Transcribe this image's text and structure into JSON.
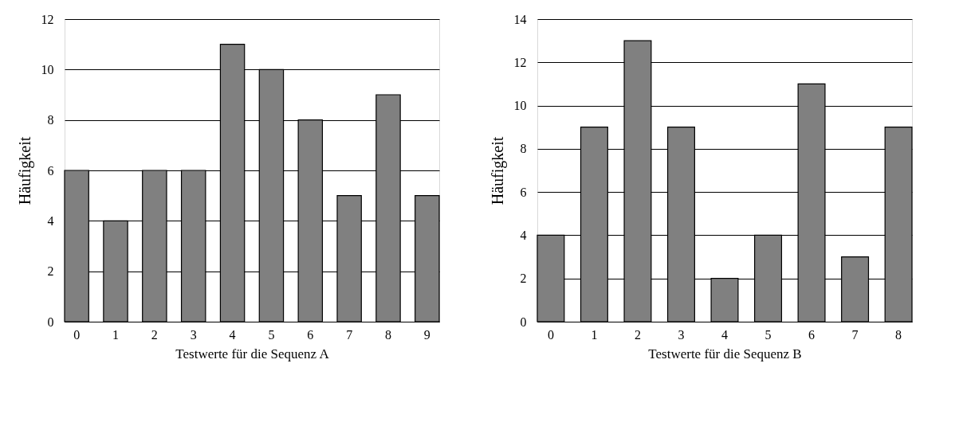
{
  "chart_data": [
    {
      "type": "bar",
      "xlabel": "Testwerte für die Sequenz A",
      "ylabel": "Häufigkeit",
      "categories": [
        "0",
        "1",
        "2",
        "3",
        "4",
        "5",
        "6",
        "7",
        "8",
        "9"
      ],
      "values": [
        6,
        4,
        6,
        6,
        11,
        10,
        8,
        5,
        9,
        5
      ],
      "color": "#808080",
      "ylim": [
        0,
        12
      ],
      "yticks": [
        0,
        2,
        4,
        6,
        8,
        10,
        12
      ],
      "grid": "y"
    },
    {
      "type": "bar",
      "xlabel": "Testwerte für die Sequenz B",
      "ylabel": "Häufigkeit",
      "categories": [
        "0",
        "1",
        "2",
        "3",
        "4",
        "5",
        "6",
        "7",
        "8"
      ],
      "values": [
        4,
        9,
        13,
        9,
        2,
        4,
        11,
        3,
        9
      ],
      "color": "#808080",
      "ylim": [
        0,
        14
      ],
      "yticks": [
        0,
        2,
        4,
        6,
        8,
        10,
        12,
        14
      ],
      "grid": "y"
    }
  ]
}
